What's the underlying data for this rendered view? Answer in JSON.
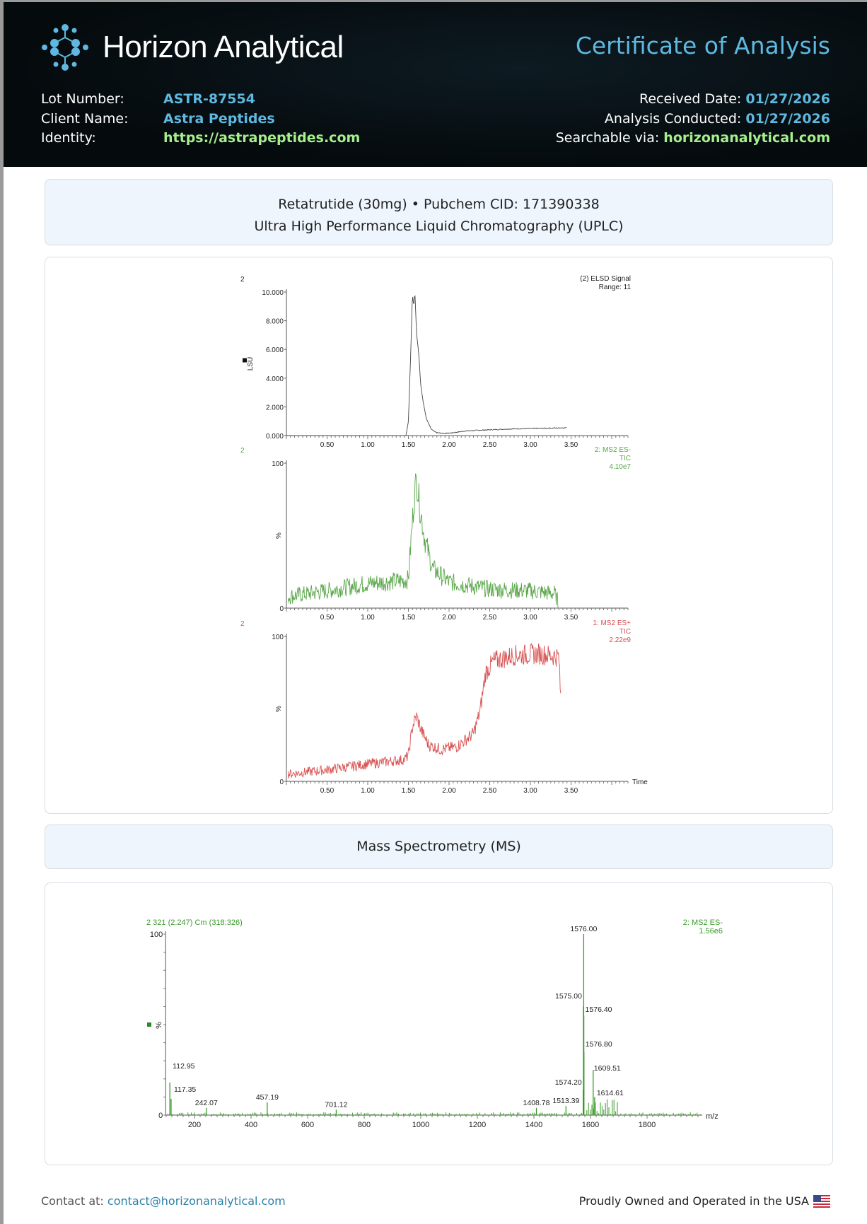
{
  "header": {
    "brand": "Horizon Analytical",
    "doc_title": "Certificate of Analysis",
    "left": [
      {
        "label": "Lot Number:",
        "value": "ASTR-87554"
      },
      {
        "label": "Client Name:",
        "value": "Astra Peptides"
      },
      {
        "label": "Identity:",
        "value": "https://astrapeptides.com"
      }
    ],
    "right": [
      {
        "label": "Received Date:",
        "value": "01/27/2026"
      },
      {
        "label": "Analysis Conducted:",
        "value": "01/27/2026"
      },
      {
        "label": "Searchable via:",
        "value": "horizonanalytical.com"
      }
    ]
  },
  "section1": {
    "line1": "Retatrutide (30mg) • Pubchem CID: 171390338",
    "line2": "Ultra High Performance Liquid Chromatography (UPLC)"
  },
  "section2": {
    "title": "Mass Spectrometry (MS)"
  },
  "footer": {
    "contact_label": "Contact at:",
    "email": "contact@horizonanalytical.com",
    "usa": "Proudly Owned and Operated in the USA"
  },
  "colors": {
    "accent": "#5fb8e0",
    "green": "#a6f08c",
    "ms_neg": "#3a9a2a",
    "ms_pos": "#d83a3a"
  },
  "chart_data": [
    {
      "type": "line",
      "trace_id": "2",
      "title": "(2) ELSD Signal",
      "subtitle": "Range: 11",
      "ylabel": "LSU",
      "xlabel": "",
      "ylim": [
        0,
        10
      ],
      "yticks": [
        "0.000",
        "2.000",
        "4.000",
        "6.000",
        "8.000",
        "10.000"
      ],
      "xticks": [
        "0.50",
        "1.00",
        "1.50",
        "2.00",
        "2.50",
        "3.00",
        "3.50"
      ],
      "xlim": [
        0,
        4.2
      ],
      "color": "#444444",
      "points": [
        [
          0.0,
          0
        ],
        [
          1.47,
          0
        ],
        [
          1.5,
          1
        ],
        [
          1.53,
          6
        ],
        [
          1.55,
          9.9
        ],
        [
          1.565,
          9.0
        ],
        [
          1.58,
          10.0
        ],
        [
          1.6,
          7.2
        ],
        [
          1.63,
          5.5
        ],
        [
          1.65,
          3.6
        ],
        [
          1.68,
          2.4
        ],
        [
          1.72,
          1.2
        ],
        [
          1.78,
          0.45
        ],
        [
          1.85,
          0.2
        ],
        [
          1.95,
          0.15
        ],
        [
          2.05,
          0.2
        ],
        [
          2.2,
          0.32
        ],
        [
          2.4,
          0.38
        ],
        [
          2.7,
          0.45
        ],
        [
          3.0,
          0.5
        ],
        [
          3.25,
          0.52
        ],
        [
          3.45,
          0.55
        ]
      ]
    },
    {
      "type": "line",
      "trace_id": "2",
      "title": "2: MS2 ES-",
      "subtitle": "TIC",
      "scale": "4.10e7",
      "ylabel": "%",
      "ylim": [
        0,
        100
      ],
      "yticks": [
        "0",
        "100"
      ],
      "xticks": [
        "0.50",
        "1.00",
        "1.50",
        "2.00",
        "2.50",
        "3.00",
        "3.50"
      ],
      "xlim": [
        0,
        4.2
      ],
      "color": "#5aa64a",
      "points": [
        [
          0.02,
          8
        ],
        [
          0.5,
          12
        ],
        [
          1.0,
          17
        ],
        [
          1.45,
          19
        ],
        [
          1.5,
          20
        ],
        [
          1.53,
          45
        ],
        [
          1.57,
          75
        ],
        [
          1.6,
          90
        ],
        [
          1.64,
          70
        ],
        [
          1.7,
          48
        ],
        [
          1.8,
          27
        ],
        [
          2.0,
          18
        ],
        [
          2.5,
          13
        ],
        [
          3.0,
          12
        ],
        [
          3.3,
          10
        ],
        [
          3.34,
          4
        ],
        [
          3.36,
          0
        ]
      ]
    },
    {
      "type": "line",
      "trace_id": "2",
      "title": "1: MS2 ES+",
      "subtitle": "TIC",
      "scale": "2.22e9",
      "ylabel": "%",
      "xlabel": "Time",
      "ylim": [
        0,
        100
      ],
      "yticks": [
        "0",
        "100"
      ],
      "xticks": [
        "0.50",
        "1.00",
        "1.50",
        "2.00",
        "2.50",
        "3.00",
        "3.50"
      ],
      "xlim": [
        0,
        4.2
      ],
      "color": "#d85050",
      "points": [
        [
          0.02,
          5
        ],
        [
          0.5,
          8
        ],
        [
          1.0,
          12
        ],
        [
          1.45,
          15
        ],
        [
          1.5,
          18
        ],
        [
          1.55,
          38
        ],
        [
          1.6,
          45
        ],
        [
          1.66,
          35
        ],
        [
          1.75,
          25
        ],
        [
          1.9,
          22
        ],
        [
          2.1,
          24
        ],
        [
          2.3,
          33
        ],
        [
          2.38,
          48
        ],
        [
          2.45,
          75
        ],
        [
          2.55,
          83
        ],
        [
          2.8,
          87
        ],
        [
          3.1,
          88
        ],
        [
          3.35,
          86
        ],
        [
          3.37,
          60
        ],
        [
          3.38,
          55
        ]
      ]
    },
    {
      "type": "bar",
      "title": "2 321 (2.247) Cm (318:326)",
      "series_label": "2: MS2 ES-",
      "scale": "1.56e6",
      "xlabel": "m/z",
      "ylabel": "%",
      "ylim": [
        0,
        100
      ],
      "xlim": [
        98,
        1995
      ],
      "xticks": [
        "200",
        "400",
        "600",
        "800",
        "1000",
        "1200",
        "1400",
        "1600",
        "1800"
      ],
      "yticks": [
        "0",
        "100"
      ],
      "color": "#3a9a2a",
      "peaks": [
        [
          112.95,
          18,
          "112.95"
        ],
        [
          117.35,
          9,
          "117.35"
        ],
        [
          242.07,
          4,
          "242.07"
        ],
        [
          457.19,
          7,
          "457.19"
        ],
        [
          701.12,
          3,
          "701.12"
        ],
        [
          1408.78,
          4,
          "1408.78"
        ],
        [
          1513.39,
          5,
          "1513.39"
        ],
        [
          1574.2,
          14,
          "1574.20"
        ],
        [
          1575.0,
          60,
          "1575.00"
        ],
        [
          1576.0,
          100,
          "1576.00"
        ],
        [
          1576.4,
          55,
          "1576.40"
        ],
        [
          1576.8,
          35,
          "1576.80"
        ],
        [
          1609.51,
          25,
          "1609.51"
        ],
        [
          1614.61,
          10,
          "1614.61"
        ]
      ]
    }
  ]
}
